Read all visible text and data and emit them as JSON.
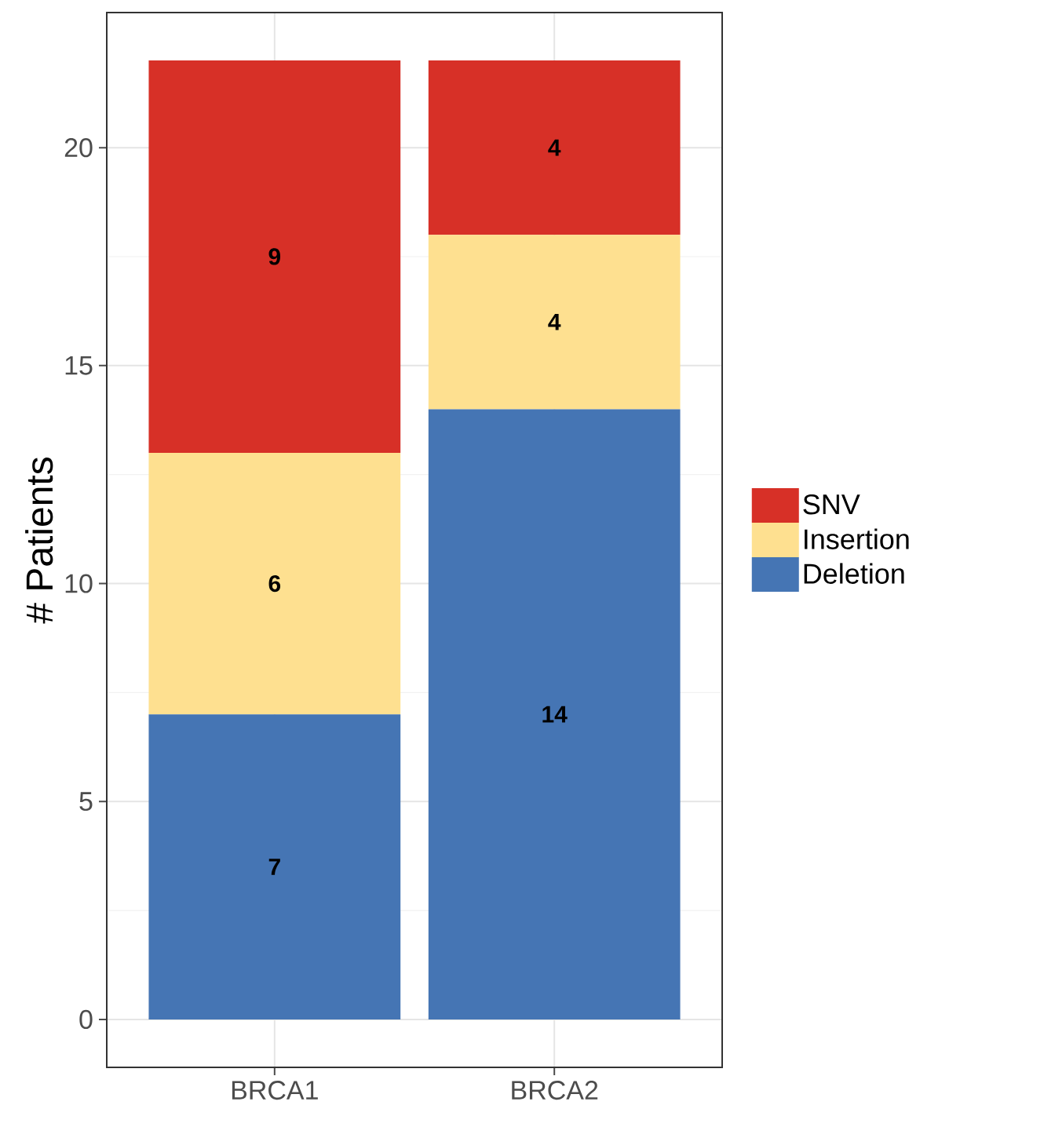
{
  "chart_data": {
    "type": "bar",
    "stacked": true,
    "categories": [
      "BRCA1",
      "BRCA2"
    ],
    "ylabel": "# Patients",
    "ylim": [
      -1.1,
      23.1
    ],
    "yticks": [
      0,
      5,
      10,
      15,
      20
    ],
    "grid": true,
    "legend": "right",
    "data_labels": true,
    "series": [
      {
        "name": "Deletion",
        "color": "#4575b4",
        "values": [
          7,
          14
        ]
      },
      {
        "name": "Insertion",
        "color": "#fee090",
        "values": [
          6,
          4
        ]
      },
      {
        "name": "SNV",
        "color": "#d73027",
        "values": [
          9,
          4
        ]
      }
    ]
  }
}
